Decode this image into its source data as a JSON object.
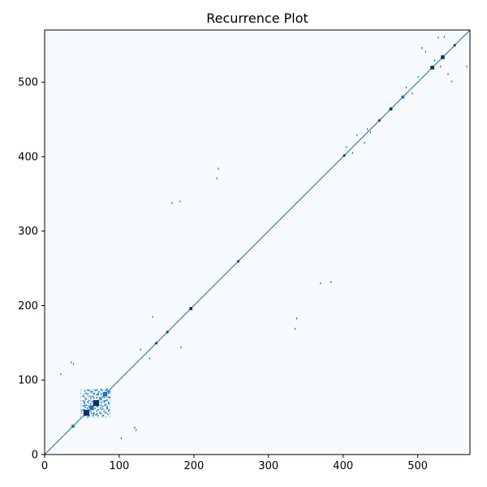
{
  "chart_data": {
    "type": "heatmap",
    "title": "Recurrence Plot",
    "xlabel": "",
    "ylabel": "",
    "xlim": [
      0,
      570
    ],
    "ylim": [
      0,
      570
    ],
    "x_ticks": [
      "0",
      "100",
      "200",
      "300",
      "400",
      "500"
    ],
    "y_ticks": [
      "0",
      "100",
      "200",
      "300",
      "400",
      "500"
    ],
    "x_tick_values": [
      0,
      100,
      200,
      300,
      400,
      500
    ],
    "y_tick_values": [
      0,
      100,
      200,
      300,
      400,
      500
    ],
    "colors": {
      "background": "#f7fbff",
      "line": "#6baed6",
      "dense": "#08306b",
      "mid": "#2171b5"
    },
    "diagonal": {
      "from": 0,
      "to": 570
    },
    "blocks": [
      {
        "x": 36,
        "y": 36,
        "w": 4,
        "h": 4,
        "level": "mid"
      },
      {
        "x": 52,
        "y": 52,
        "w": 8,
        "h": 8,
        "level": "dense"
      },
      {
        "x": 60,
        "y": 60,
        "w": 6,
        "h": 6,
        "level": "mid"
      },
      {
        "x": 65,
        "y": 65,
        "w": 8,
        "h": 8,
        "level": "dense"
      },
      {
        "x": 78,
        "y": 78,
        "w": 6,
        "h": 6,
        "level": "mid"
      },
      {
        "x": 148,
        "y": 148,
        "w": 3,
        "h": 3,
        "level": "dense"
      },
      {
        "x": 163,
        "y": 163,
        "w": 3,
        "h": 3,
        "level": "dense"
      },
      {
        "x": 194,
        "y": 194,
        "w": 4,
        "h": 4,
        "level": "dense"
      },
      {
        "x": 258,
        "y": 258,
        "w": 3,
        "h": 3,
        "level": "dense"
      },
      {
        "x": 400,
        "y": 400,
        "w": 3,
        "h": 3,
        "level": "dense"
      },
      {
        "x": 447,
        "y": 447,
        "w": 3,
        "h": 3,
        "level": "dense"
      },
      {
        "x": 462,
        "y": 462,
        "w": 4,
        "h": 4,
        "level": "dense"
      },
      {
        "x": 478,
        "y": 478,
        "w": 4,
        "h": 4,
        "level": "mid"
      },
      {
        "x": 517,
        "y": 517,
        "w": 5,
        "h": 5,
        "level": "dense"
      },
      {
        "x": 531,
        "y": 531,
        "w": 5,
        "h": 5,
        "level": "dense"
      },
      {
        "x": 548,
        "y": 548,
        "w": 3,
        "h": 3,
        "level": "dense"
      }
    ],
    "cluster": {
      "x_min": 48,
      "x_max": 88,
      "y_min": 50,
      "y_max": 88,
      "points": [
        [
          50,
          58
        ],
        [
          52,
          65
        ],
        [
          54,
          70
        ],
        [
          55,
          75
        ],
        [
          56,
          82
        ],
        [
          58,
          86
        ],
        [
          60,
          52
        ],
        [
          60,
          72
        ],
        [
          61,
          78
        ],
        [
          62,
          84
        ],
        [
          63,
          55
        ],
        [
          64,
          60
        ],
        [
          66,
          76
        ],
        [
          67,
          82
        ],
        [
          68,
          86
        ],
        [
          69,
          53
        ],
        [
          70,
          58
        ],
        [
          71,
          64
        ],
        [
          72,
          80
        ],
        [
          73,
          84
        ],
        [
          74,
          56
        ],
        [
          75,
          62
        ],
        [
          76,
          70
        ],
        [
          77,
          86
        ],
        [
          79,
          52
        ],
        [
          80,
          58
        ],
        [
          81,
          66
        ],
        [
          82,
          72
        ],
        [
          83,
          80
        ],
        [
          84,
          86
        ],
        [
          85,
          54
        ],
        [
          86,
          60
        ],
        [
          86,
          68
        ],
        [
          87,
          76
        ],
        [
          58,
          62
        ],
        [
          62,
          68
        ],
        [
          66,
          54
        ],
        [
          70,
          86
        ],
        [
          74,
          76
        ],
        [
          78,
          64
        ],
        [
          82,
          56
        ],
        [
          86,
          82
        ],
        [
          52,
          78
        ],
        [
          56,
          66
        ],
        [
          64,
          84
        ],
        [
          72,
          52
        ],
        [
          76,
          80
        ],
        [
          80,
          70
        ],
        [
          84,
          62
        ],
        [
          88,
          84
        ]
      ]
    },
    "scattered": [
      [
        35,
        123
      ],
      [
        38,
        121
      ],
      [
        21,
        107
      ],
      [
        102,
        21
      ],
      [
        120,
        35
      ],
      [
        122,
        32
      ],
      [
        232,
        383
      ],
      [
        230,
        370
      ],
      [
        170,
        337
      ],
      [
        181,
        339
      ],
      [
        144,
        184
      ],
      [
        182,
        143
      ],
      [
        337,
        182
      ],
      [
        335,
        168
      ],
      [
        369,
        229
      ],
      [
        383,
        231
      ],
      [
        418,
        428
      ],
      [
        428,
        418
      ],
      [
        432,
        436
      ],
      [
        436,
        432
      ],
      [
        484,
        492
      ],
      [
        492,
        484
      ],
      [
        500,
        506
      ],
      [
        527,
        559
      ],
      [
        535,
        560
      ],
      [
        510,
        540
      ],
      [
        540,
        510
      ],
      [
        545,
        500
      ],
      [
        505,
        545
      ],
      [
        565,
        520
      ],
      [
        530,
        520
      ],
      [
        522,
        528
      ],
      [
        412,
        404
      ],
      [
        404,
        412
      ],
      [
        128,
        140
      ],
      [
        140,
        128
      ]
    ]
  }
}
